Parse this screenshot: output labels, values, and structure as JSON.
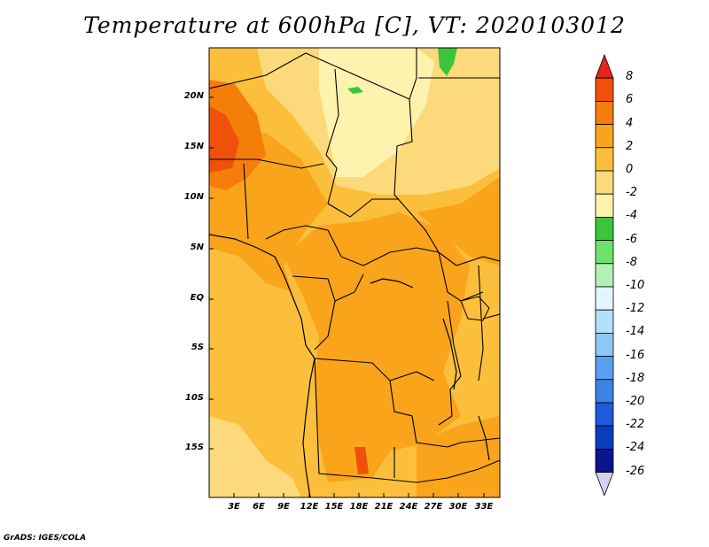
{
  "title": "Temperature at 600hPa [C], VT: 2020103012",
  "credit": "GrADS: IGES/COLA",
  "map": {
    "region": "Central Africa",
    "lon_labels": [
      "3E",
      "6E",
      "9E",
      "12E",
      "15E",
      "18E",
      "21E",
      "24E",
      "27E",
      "30E",
      "33E"
    ],
    "lat_labels": [
      "20N",
      "15N",
      "10N",
      "5N",
      "EQ",
      "5S",
      "10S",
      "15S"
    ]
  },
  "colorbar": {
    "labels": [
      "8",
      "6",
      "4",
      "2",
      "0",
      "-2",
      "-4",
      "-6",
      "-8",
      "-10",
      "-12",
      "-14",
      "-16",
      "-18",
      "-20",
      "-22",
      "-24",
      "-26"
    ],
    "colors": [
      "#e8241a",
      "#f0500a",
      "#f57d0a",
      "#f9a41a",
      "#fbbf3c",
      "#fcd97a",
      "#fdf3ae",
      "#3cc43c",
      "#6ee06e",
      "#b4f0b4",
      "#e1f7fb",
      "#b4e1fa",
      "#8cc8f5",
      "#5aa0f0",
      "#3c82e6",
      "#1e5adc",
      "#0a3cbe",
      "#0a148c",
      "#d2d2f0"
    ]
  }
}
